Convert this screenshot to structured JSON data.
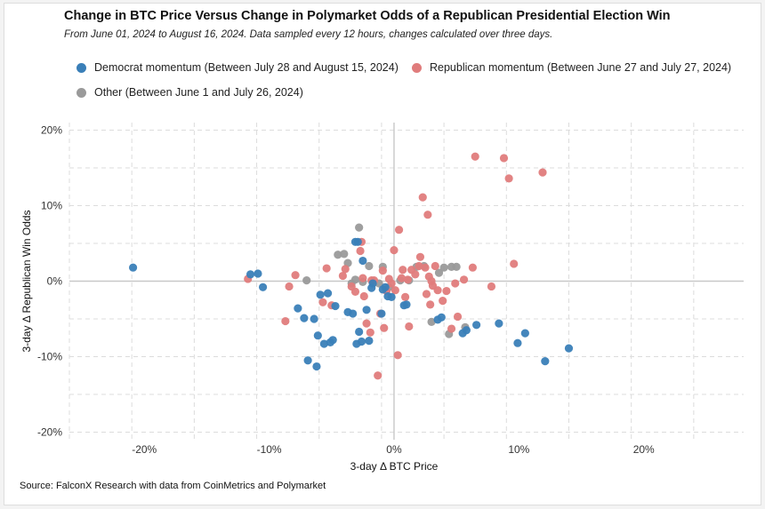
{
  "chart_data": {
    "type": "scatter",
    "title": "Change in BTC Price Versus Change in Polymarket Odds of a Republican Presidential Election Win",
    "subtitle": "From June 01, 2024 to August 16, 2024. Data sampled every 12 hours, changes calculated over three days.",
    "xlabel": "3-day Δ BTC Price",
    "ylabel": "3-day Δ Republican Win Odds",
    "xlim": [
      -26,
      28
    ],
    "ylim": [
      -21,
      21
    ],
    "xticks": [
      -20,
      -10,
      0,
      10,
      20
    ],
    "xtick_labels": [
      "-20%",
      "-10%",
      "0%",
      "10%",
      "20%"
    ],
    "yticks": [
      -20,
      -10,
      0,
      10,
      20
    ],
    "ytick_labels": [
      "-20%",
      "-10%",
      "0%",
      "10%",
      "20%"
    ],
    "grid": true,
    "legend_position": "top",
    "source": "Source: FalconX Research with data from CoinMetrics and Polymarket",
    "series": [
      {
        "name": "Democrat momentum (Between July 28 and August 15, 2024)",
        "color": "#3a7fb8",
        "x": [
          -20.9,
          -11.5,
          -10.9,
          -10.5,
          -7.7,
          -7.2,
          -6.9,
          -6.4,
          -6.2,
          -6.1,
          -5.9,
          -5.6,
          -5.3,
          -5.1,
          -4.9,
          -4.7,
          -3.7,
          -3.3,
          -3.1,
          -3.0,
          -2.9,
          -2.8,
          -2.6,
          -2.5,
          -2.2,
          -2.0,
          -1.8,
          -1.7,
          -1.0,
          -0.9,
          -0.7,
          -0.5,
          -0.2,
          0.8,
          1.0,
          3.5,
          3.8,
          5.5,
          5.8,
          6.6,
          8.4,
          9.9,
          10.5,
          12.1,
          14.0
        ],
        "y": [
          1.8,
          0.9,
          1.0,
          -0.8,
          -3.6,
          -4.9,
          -10.5,
          -5.0,
          -11.3,
          -7.2,
          -1.8,
          -8.3,
          -1.6,
          -8.1,
          -7.8,
          -3.3,
          -4.1,
          -4.3,
          5.2,
          -8.3,
          5.2,
          -6.7,
          -8.0,
          2.7,
          -3.8,
          -7.9,
          -0.9,
          -0.3,
          -4.3,
          -1.1,
          -0.8,
          -2.0,
          -2.1,
          -3.2,
          -3.1,
          -5.1,
          -4.8,
          -6.9,
          -6.5,
          -5.8,
          -5.6,
          -8.2,
          -6.9,
          -10.6,
          -8.9
        ]
      },
      {
        "name": "Republican momentum (Between June 27 and July 27, 2024)",
        "color": "#e07c7c",
        "x": [
          -11.7,
          -8.7,
          -8.4,
          -7.9,
          -5.7,
          -5.4,
          -5.0,
          -4.1,
          -3.9,
          -3.4,
          -3.1,
          -2.7,
          -2.6,
          -2.5,
          -2.4,
          -2.2,
          -1.9,
          -1.8,
          -1.6,
          -1.3,
          -1.1,
          -0.9,
          -0.8,
          -0.6,
          -0.4,
          -0.2,
          0.0,
          0.1,
          0.3,
          0.4,
          0.6,
          0.7,
          0.9,
          1.1,
          1.2,
          1.4,
          1.7,
          2.0,
          2.1,
          2.3,
          2.5,
          2.6,
          2.7,
          2.8,
          2.9,
          3.0,
          3.1,
          3.3,
          3.5,
          3.9,
          4.2,
          4.6,
          4.9,
          5.1,
          5.6,
          6.3,
          6.5,
          7.8,
          8.8,
          9.2,
          9.6,
          11.9
        ],
        "y": [
          0.3,
          -5.3,
          -0.7,
          0.8,
          -2.8,
          1.7,
          -3.2,
          0.7,
          1.6,
          -0.7,
          -1.4,
          4.0,
          5.2,
          0.4,
          -2.0,
          -5.6,
          -6.8,
          0.1,
          0.1,
          -12.5,
          -4.3,
          1.4,
          -6.2,
          -1.3,
          0.3,
          -0.3,
          4.1,
          -1.2,
          -9.8,
          6.8,
          0.4,
          1.5,
          -2.1,
          0.2,
          -6.0,
          1.5,
          0.9,
          2.0,
          3.2,
          11.1,
          1.8,
          -1.7,
          8.8,
          0.6,
          -3.1,
          0.0,
          -0.6,
          2.0,
          -1.2,
          -2.6,
          -1.3,
          -6.3,
          -0.3,
          -4.7,
          0.2,
          1.8,
          16.5,
          -0.7,
          16.3,
          13.6,
          2.3,
          14.4
        ]
      },
      {
        "name": "Other (Between June 1 and July 26, 2024)",
        "color": "#9a9a9a",
        "x": [
          -7.0,
          -4.5,
          -4.0,
          -3.7,
          -3.4,
          -3.1,
          -2.8,
          -2.5,
          -2.0,
          -1.2,
          -0.9,
          -0.4,
          0.5,
          1.2,
          1.8,
          2.4,
          3.0,
          3.6,
          4.0,
          4.4,
          4.6,
          5.0,
          5.7
        ],
        "y": [
          0.1,
          3.5,
          3.6,
          2.4,
          -0.3,
          0.2,
          7.1,
          -0.1,
          2.0,
          -0.3,
          1.9,
          -0.8,
          0.1,
          0.1,
          1.9,
          2.0,
          -5.4,
          1.1,
          1.8,
          -7.0,
          1.9,
          1.9,
          -6.1
        ]
      }
    ]
  }
}
